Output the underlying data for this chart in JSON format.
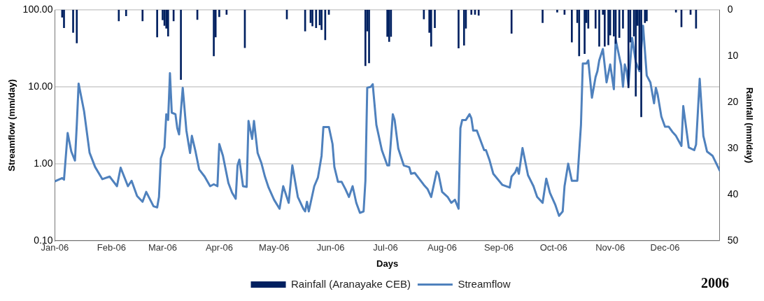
{
  "chart_data": {
    "type": "line",
    "xlabel": "Days",
    "ylabel": "Streamflow (mm/day)",
    "y2label": "Rainfall (mm/day)",
    "annotations": [
      "2006"
    ],
    "xlim": [
      "2006-01-01",
      "2006-12-31"
    ],
    "xticks": [
      {
        "value": "2006-01-01",
        "label": "Jan-06"
      },
      {
        "value": "2006-02-01",
        "label": "Feb-06"
      },
      {
        "value": "2006-03-01",
        "label": "Mar-06"
      },
      {
        "value": "2006-04-01",
        "label": "Apr-06"
      },
      {
        "value": "2006-05-01",
        "label": "May-06"
      },
      {
        "value": "2006-06-01",
        "label": "Jun-06"
      },
      {
        "value": "2006-07-01",
        "label": "Jul-06"
      },
      {
        "value": "2006-08-01",
        "label": "Aug-06"
      },
      {
        "value": "2006-09-01",
        "label": "Sep-06"
      },
      {
        "value": "2006-10-01",
        "label": "Oct-06"
      },
      {
        "value": "2006-11-01",
        "label": "Nov-06"
      },
      {
        "value": "2006-12-01",
        "label": "Dec-06"
      }
    ],
    "log": "y",
    "ylim": [
      0.1,
      100
    ],
    "yticks": [
      {
        "value": 0.1,
        "label": "0.10"
      },
      {
        "value": 1,
        "label": "1.00"
      },
      {
        "value": 10,
        "label": "10.00"
      },
      {
        "value": 100,
        "label": "100.00"
      }
    ],
    "y2lim": [
      50,
      0
    ],
    "y2ticks": [
      0,
      10,
      20,
      30,
      40,
      50
    ],
    "grid": "y",
    "legend": "bottom",
    "marker": "none",
    "line_style": "solid",
    "series": [
      {
        "name": "Rainfall (Aranayake CEB)",
        "type": "bar",
        "axis": "y2",
        "color": "#002060",
        "x": [
          "2006-01-05",
          "2006-01-06",
          "2006-01-11",
          "2006-01-13",
          "2006-02-05",
          "2006-02-09",
          "2006-02-18",
          "2006-02-26",
          "2006-03-01",
          "2006-03-02",
          "2006-03-03",
          "2006-03-04",
          "2006-03-07",
          "2006-03-11",
          "2006-03-20",
          "2006-03-29",
          "2006-03-30",
          "2006-04-01",
          "2006-04-05",
          "2006-04-15",
          "2006-05-08",
          "2006-05-18",
          "2006-05-21",
          "2006-05-22",
          "2006-05-24",
          "2006-05-26",
          "2006-05-27",
          "2006-05-29",
          "2006-05-31",
          "2006-06-20",
          "2006-06-21",
          "2006-06-22",
          "2006-07-02",
          "2006-07-03",
          "2006-07-04",
          "2006-07-22",
          "2006-07-25",
          "2006-07-26",
          "2006-07-28",
          "2006-08-10",
          "2006-08-13",
          "2006-08-14",
          "2006-08-17",
          "2006-08-19",
          "2006-08-21",
          "2006-09-08",
          "2006-09-25",
          "2006-10-03",
          "2006-10-07",
          "2006-10-11",
          "2006-10-14",
          "2006-10-15",
          "2006-10-18",
          "2006-10-19",
          "2006-10-20",
          "2006-10-24",
          "2006-10-26",
          "2006-10-28",
          "2006-10-29",
          "2006-10-31",
          "2006-11-01",
          "2006-11-03",
          "2006-11-04",
          "2006-11-06",
          "2006-11-08",
          "2006-11-11",
          "2006-11-12",
          "2006-11-14",
          "2006-11-15",
          "2006-11-16",
          "2006-11-17",
          "2006-11-18",
          "2006-11-20",
          "2006-11-21",
          "2006-12-07",
          "2006-12-10",
          "2006-12-15",
          "2006-12-18"
        ],
        "values": [
          1.6,
          3.9,
          4.9,
          7.2,
          2.4,
          1.3,
          2.4,
          5.9,
          2.2,
          3.4,
          4,
          5.7,
          2.4,
          15.1,
          2.1,
          10,
          5.9,
          1.5,
          1,
          8.2,
          2,
          4.6,
          2.8,
          3.5,
          3.9,
          3.3,
          4.3,
          6.5,
          1,
          12.1,
          4.6,
          11.5,
          5.8,
          6.9,
          5.8,
          2,
          4.9,
          7.9,
          3.9,
          8.3,
          7.7,
          4,
          1,
          1,
          1.2,
          5.1,
          2.8,
          0.5,
          1,
          7,
          2.8,
          10,
          9.5,
          2.8,
          4,
          4,
          7.9,
          1,
          7.9,
          7.6,
          5.5,
          5.7,
          7.3,
          6,
          4,
          16.9,
          7,
          5.7,
          18.7,
          3.4,
          13,
          23.2,
          2.8,
          2.4,
          0.5,
          3.7,
          1,
          4
        ]
      },
      {
        "name": "Streamflow",
        "color": "#4f81bd",
        "x": [
          "2006-01-01",
          "2006-01-05",
          "2006-01-06",
          "2006-01-08",
          "2006-01-10",
          "2006-01-12",
          "2006-01-13",
          "2006-01-14",
          "2006-01-17",
          "2006-01-20",
          "2006-01-23",
          "2006-01-27",
          "2006-01-31",
          "2006-02-04",
          "2006-02-06",
          "2006-02-10",
          "2006-02-12",
          "2006-02-15",
          "2006-02-18",
          "2006-02-20",
          "2006-02-24",
          "2006-02-26",
          "2006-02-27",
          "2006-02-28",
          "2006-03-02",
          "2006-03-03",
          "2006-03-04",
          "2006-03-05",
          "2006-03-06",
          "2006-03-08",
          "2006-03-09",
          "2006-03-10",
          "2006-03-12",
          "2006-03-14",
          "2006-03-16",
          "2006-03-17",
          "2006-03-19",
          "2006-03-21",
          "2006-03-24",
          "2006-03-27",
          "2006-03-29",
          "2006-03-31",
          "2006-04-01",
          "2006-04-03",
          "2006-04-06",
          "2006-04-08",
          "2006-04-10",
          "2006-04-11",
          "2006-04-12",
          "2006-04-14",
          "2006-04-16",
          "2006-04-17",
          "2006-04-19",
          "2006-04-20",
          "2006-04-22",
          "2006-04-24",
          "2006-04-26",
          "2006-04-28",
          "2006-05-01",
          "2006-05-04",
          "2006-05-06",
          "2006-05-09",
          "2006-05-11",
          "2006-05-14",
          "2006-05-17",
          "2006-05-18",
          "2006-05-19",
          "2006-05-20",
          "2006-05-23",
          "2006-05-25",
          "2006-05-27",
          "2006-05-28",
          "2006-05-31",
          "2006-06-02",
          "2006-06-03",
          "2006-06-05",
          "2006-06-07",
          "2006-06-09",
          "2006-06-11",
          "2006-06-13",
          "2006-06-15",
          "2006-06-17",
          "2006-06-19",
          "2006-06-20",
          "2006-06-21",
          "2006-06-23",
          "2006-06-24",
          "2006-06-26",
          "2006-06-29",
          "2006-07-02",
          "2006-07-03",
          "2006-07-05",
          "2006-07-06",
          "2006-07-08",
          "2006-07-11",
          "2006-07-14",
          "2006-07-15",
          "2006-07-17",
          "2006-07-22",
          "2006-07-24",
          "2006-07-26",
          "2006-07-29",
          "2006-07-30",
          "2006-08-01",
          "2006-08-04",
          "2006-08-06",
          "2006-08-08",
          "2006-08-10",
          "2006-08-11",
          "2006-08-12",
          "2006-08-14",
          "2006-08-16",
          "2006-08-17",
          "2006-08-18",
          "2006-08-20",
          "2006-08-24",
          "2006-08-25",
          "2006-08-27",
          "2006-08-29",
          "2006-09-03",
          "2006-09-07",
          "2006-09-08",
          "2006-09-10",
          "2006-09-11",
          "2006-09-12",
          "2006-09-14",
          "2006-09-17",
          "2006-09-20",
          "2006-09-22",
          "2006-09-25",
          "2006-09-27",
          "2006-09-29",
          "2006-10-02",
          "2006-10-04",
          "2006-10-06",
          "2006-10-07",
          "2006-10-09",
          "2006-10-11",
          "2006-10-14",
          "2006-10-16",
          "2006-10-17",
          "2006-10-19",
          "2006-10-20",
          "2006-10-22",
          "2006-10-24",
          "2006-10-25",
          "2006-10-26",
          "2006-10-28",
          "2006-10-30",
          "2006-11-01",
          "2006-11-03",
          "2006-11-04",
          "2006-11-07",
          "2006-11-08",
          "2006-11-09",
          "2006-11-10",
          "2006-11-11",
          "2006-11-13",
          "2006-11-15",
          "2006-11-17",
          "2006-11-19",
          "2006-11-21",
          "2006-11-23",
          "2006-11-25",
          "2006-11-26",
          "2006-11-27",
          "2006-11-29",
          "2006-12-01",
          "2006-12-03",
          "2006-12-05",
          "2006-12-07",
          "2006-12-10",
          "2006-12-11",
          "2006-12-14",
          "2006-12-17",
          "2006-12-18",
          "2006-12-20",
          "2006-12-22",
          "2006-12-24",
          "2006-12-27",
          "2006-12-31"
        ],
        "values": [
          0.59,
          0.65,
          0.62,
          2.5,
          1.44,
          1.1,
          3.2,
          11,
          4.8,
          1.39,
          0.91,
          0.63,
          0.68,
          0.51,
          0.89,
          0.51,
          0.6,
          0.38,
          0.32,
          0.43,
          0.28,
          0.27,
          0.37,
          1.17,
          1.63,
          4.4,
          3.7,
          15,
          4.6,
          4.4,
          2.9,
          2.4,
          9.7,
          2.7,
          1.38,
          2.3,
          1.44,
          0.84,
          0.68,
          0.51,
          0.54,
          0.51,
          1.8,
          1.27,
          0.56,
          0.42,
          0.35,
          0.95,
          1.13,
          0.51,
          0.5,
          3.6,
          2.1,
          3.6,
          1.38,
          1.03,
          0.68,
          0.49,
          0.34,
          0.26,
          0.51,
          0.31,
          0.95,
          0.37,
          0.26,
          0.24,
          0.32,
          0.24,
          0.51,
          0.66,
          1.27,
          3,
          3,
          1.8,
          0.91,
          0.58,
          0.58,
          0.47,
          0.37,
          0.51,
          0.31,
          0.23,
          0.24,
          0.6,
          9.7,
          10,
          10.8,
          3.2,
          1.5,
          0.95,
          0.95,
          4.4,
          3.7,
          1.57,
          0.95,
          0.9,
          0.74,
          0.76,
          0.53,
          0.47,
          0.37,
          0.79,
          0.74,
          0.43,
          0.37,
          0.31,
          0.34,
          0.26,
          2.9,
          3.7,
          3.7,
          4.4,
          3.9,
          2.7,
          2.7,
          1.5,
          1.5,
          1.1,
          0.74,
          0.53,
          0.49,
          0.68,
          0.77,
          0.89,
          0.74,
          1.6,
          0.71,
          0.51,
          0.37,
          0.31,
          0.64,
          0.42,
          0.29,
          0.21,
          0.24,
          0.51,
          1,
          0.6,
          0.6,
          3.2,
          20,
          20,
          22,
          7.2,
          13.4,
          15.9,
          22,
          31,
          11.4,
          19.5,
          9.3,
          41,
          18.8,
          10,
          19.5,
          15.9,
          10.5,
          43,
          21,
          15.9,
          62,
          14,
          11.4,
          6.1,
          9.7,
          7.9,
          4.1,
          3.03,
          3.03,
          2.6,
          2.3,
          1.7,
          5.6,
          1.63,
          1.5,
          1.77,
          12.7,
          2.3,
          1.44,
          1.27,
          0.81
        ]
      }
    ]
  }
}
